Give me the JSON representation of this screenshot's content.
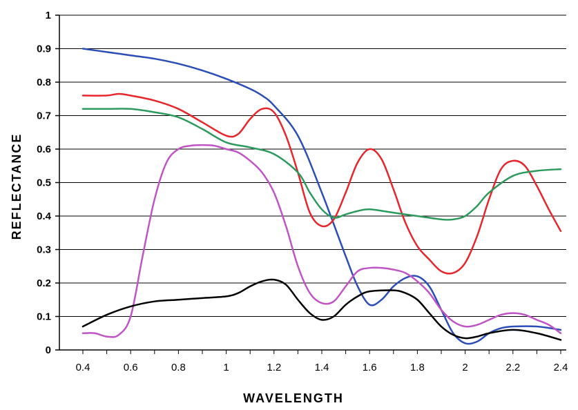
{
  "chart_data": {
    "type": "line",
    "title": "",
    "xlabel": "WAVELENGTH",
    "ylabel": "REFLECTANCE",
    "xlim": [
      0.3,
      2.45
    ],
    "ylim": [
      0,
      1
    ],
    "x_ticks": [
      0.4,
      0.6,
      0.8,
      1.0,
      1.2,
      1.4,
      1.6,
      1.8,
      2.0,
      2.2,
      2.4
    ],
    "x_tick_labels": [
      "0.4",
      "0.6",
      "0.8",
      "1",
      "1.2",
      "1.4",
      "1.6",
      "1.8",
      "2",
      "2.2",
      "2.4"
    ],
    "y_ticks": [
      0,
      0.1,
      0.2,
      0.3,
      0.4,
      0.5,
      0.6,
      0.7,
      0.8,
      0.9,
      1.0
    ],
    "y_tick_labels": [
      "0",
      "0.1",
      "0.2",
      "0.3",
      "0.4",
      "0.5",
      "0.6",
      "0.7",
      "0.8",
      "0.9",
      "1"
    ],
    "grid": "horizontal",
    "legend": "none",
    "series": [
      {
        "color": "#2a4db8",
        "points": [
          [
            0.4,
            0.9
          ],
          [
            0.5,
            0.89
          ],
          [
            0.6,
            0.88
          ],
          [
            0.7,
            0.87
          ],
          [
            0.8,
            0.855
          ],
          [
            0.9,
            0.835
          ],
          [
            1.0,
            0.81
          ],
          [
            1.1,
            0.78
          ],
          [
            1.15,
            0.76
          ],
          [
            1.2,
            0.73
          ],
          [
            1.3,
            0.64
          ],
          [
            1.4,
            0.47
          ],
          [
            1.5,
            0.28
          ],
          [
            1.55,
            0.19
          ],
          [
            1.6,
            0.135
          ],
          [
            1.65,
            0.15
          ],
          [
            1.7,
            0.19
          ],
          [
            1.75,
            0.215
          ],
          [
            1.8,
            0.22
          ],
          [
            1.85,
            0.19
          ],
          [
            1.9,
            0.12
          ],
          [
            1.95,
            0.05
          ],
          [
            2.0,
            0.02
          ],
          [
            2.05,
            0.025
          ],
          [
            2.1,
            0.05
          ],
          [
            2.15,
            0.065
          ],
          [
            2.2,
            0.07
          ],
          [
            2.3,
            0.07
          ],
          [
            2.4,
            0.06
          ]
        ]
      },
      {
        "color": "#e8252b",
        "points": [
          [
            0.4,
            0.76
          ],
          [
            0.5,
            0.76
          ],
          [
            0.55,
            0.765
          ],
          [
            0.6,
            0.76
          ],
          [
            0.7,
            0.745
          ],
          [
            0.8,
            0.72
          ],
          [
            0.9,
            0.68
          ],
          [
            1.0,
            0.64
          ],
          [
            1.05,
            0.645
          ],
          [
            1.1,
            0.69
          ],
          [
            1.15,
            0.72
          ],
          [
            1.2,
            0.71
          ],
          [
            1.25,
            0.64
          ],
          [
            1.3,
            0.53
          ],
          [
            1.35,
            0.41
          ],
          [
            1.4,
            0.37
          ],
          [
            1.45,
            0.39
          ],
          [
            1.5,
            0.47
          ],
          [
            1.55,
            0.56
          ],
          [
            1.6,
            0.6
          ],
          [
            1.65,
            0.57
          ],
          [
            1.7,
            0.48
          ],
          [
            1.75,
            0.38
          ],
          [
            1.8,
            0.31
          ],
          [
            1.85,
            0.27
          ],
          [
            1.9,
            0.235
          ],
          [
            1.95,
            0.23
          ],
          [
            2.0,
            0.26
          ],
          [
            2.05,
            0.34
          ],
          [
            2.1,
            0.45
          ],
          [
            2.15,
            0.54
          ],
          [
            2.2,
            0.565
          ],
          [
            2.25,
            0.55
          ],
          [
            2.3,
            0.49
          ],
          [
            2.35,
            0.42
          ],
          [
            2.4,
            0.355
          ]
        ]
      },
      {
        "color": "#2b9a5c",
        "points": [
          [
            0.4,
            0.72
          ],
          [
            0.5,
            0.72
          ],
          [
            0.6,
            0.72
          ],
          [
            0.7,
            0.71
          ],
          [
            0.8,
            0.695
          ],
          [
            0.9,
            0.66
          ],
          [
            1.0,
            0.62
          ],
          [
            1.1,
            0.605
          ],
          [
            1.2,
            0.585
          ],
          [
            1.3,
            0.53
          ],
          [
            1.35,
            0.47
          ],
          [
            1.4,
            0.42
          ],
          [
            1.45,
            0.395
          ],
          [
            1.5,
            0.405
          ],
          [
            1.55,
            0.415
          ],
          [
            1.6,
            0.42
          ],
          [
            1.7,
            0.41
          ],
          [
            1.8,
            0.4
          ],
          [
            1.9,
            0.39
          ],
          [
            1.95,
            0.39
          ],
          [
            2.0,
            0.4
          ],
          [
            2.05,
            0.43
          ],
          [
            2.1,
            0.47
          ],
          [
            2.2,
            0.52
          ],
          [
            2.3,
            0.535
          ],
          [
            2.4,
            0.54
          ]
        ]
      },
      {
        "color": "#c054c6",
        "points": [
          [
            0.4,
            0.05
          ],
          [
            0.45,
            0.05
          ],
          [
            0.5,
            0.04
          ],
          [
            0.55,
            0.045
          ],
          [
            0.6,
            0.1
          ],
          [
            0.65,
            0.28
          ],
          [
            0.7,
            0.45
          ],
          [
            0.75,
            0.56
          ],
          [
            0.8,
            0.6
          ],
          [
            0.85,
            0.61
          ],
          [
            0.9,
            0.612
          ],
          [
            0.95,
            0.61
          ],
          [
            1.0,
            0.6
          ],
          [
            1.05,
            0.59
          ],
          [
            1.1,
            0.565
          ],
          [
            1.15,
            0.53
          ],
          [
            1.2,
            0.47
          ],
          [
            1.25,
            0.37
          ],
          [
            1.3,
            0.25
          ],
          [
            1.35,
            0.17
          ],
          [
            1.4,
            0.14
          ],
          [
            1.45,
            0.145
          ],
          [
            1.5,
            0.19
          ],
          [
            1.55,
            0.235
          ],
          [
            1.6,
            0.245
          ],
          [
            1.65,
            0.245
          ],
          [
            1.7,
            0.24
          ],
          [
            1.75,
            0.23
          ],
          [
            1.8,
            0.205
          ],
          [
            1.85,
            0.17
          ],
          [
            1.9,
            0.12
          ],
          [
            1.95,
            0.085
          ],
          [
            2.0,
            0.07
          ],
          [
            2.05,
            0.075
          ],
          [
            2.1,
            0.09
          ],
          [
            2.15,
            0.105
          ],
          [
            2.2,
            0.11
          ],
          [
            2.25,
            0.105
          ],
          [
            2.3,
            0.09
          ],
          [
            2.35,
            0.075
          ],
          [
            2.4,
            0.05
          ]
        ]
      },
      {
        "color": "#000000",
        "points": [
          [
            0.4,
            0.07
          ],
          [
            0.5,
            0.105
          ],
          [
            0.6,
            0.13
          ],
          [
            0.7,
            0.145
          ],
          [
            0.8,
            0.15
          ],
          [
            0.9,
            0.155
          ],
          [
            1.0,
            0.16
          ],
          [
            1.05,
            0.17
          ],
          [
            1.1,
            0.19
          ],
          [
            1.15,
            0.205
          ],
          [
            1.2,
            0.21
          ],
          [
            1.25,
            0.195
          ],
          [
            1.3,
            0.15
          ],
          [
            1.35,
            0.11
          ],
          [
            1.4,
            0.09
          ],
          [
            1.45,
            0.1
          ],
          [
            1.5,
            0.135
          ],
          [
            1.55,
            0.16
          ],
          [
            1.6,
            0.175
          ],
          [
            1.7,
            0.178
          ],
          [
            1.75,
            0.17
          ],
          [
            1.8,
            0.15
          ],
          [
            1.85,
            0.11
          ],
          [
            1.9,
            0.07
          ],
          [
            1.95,
            0.045
          ],
          [
            2.0,
            0.035
          ],
          [
            2.05,
            0.04
          ],
          [
            2.1,
            0.05
          ],
          [
            2.2,
            0.06
          ],
          [
            2.3,
            0.05
          ],
          [
            2.4,
            0.03
          ]
        ]
      }
    ]
  }
}
